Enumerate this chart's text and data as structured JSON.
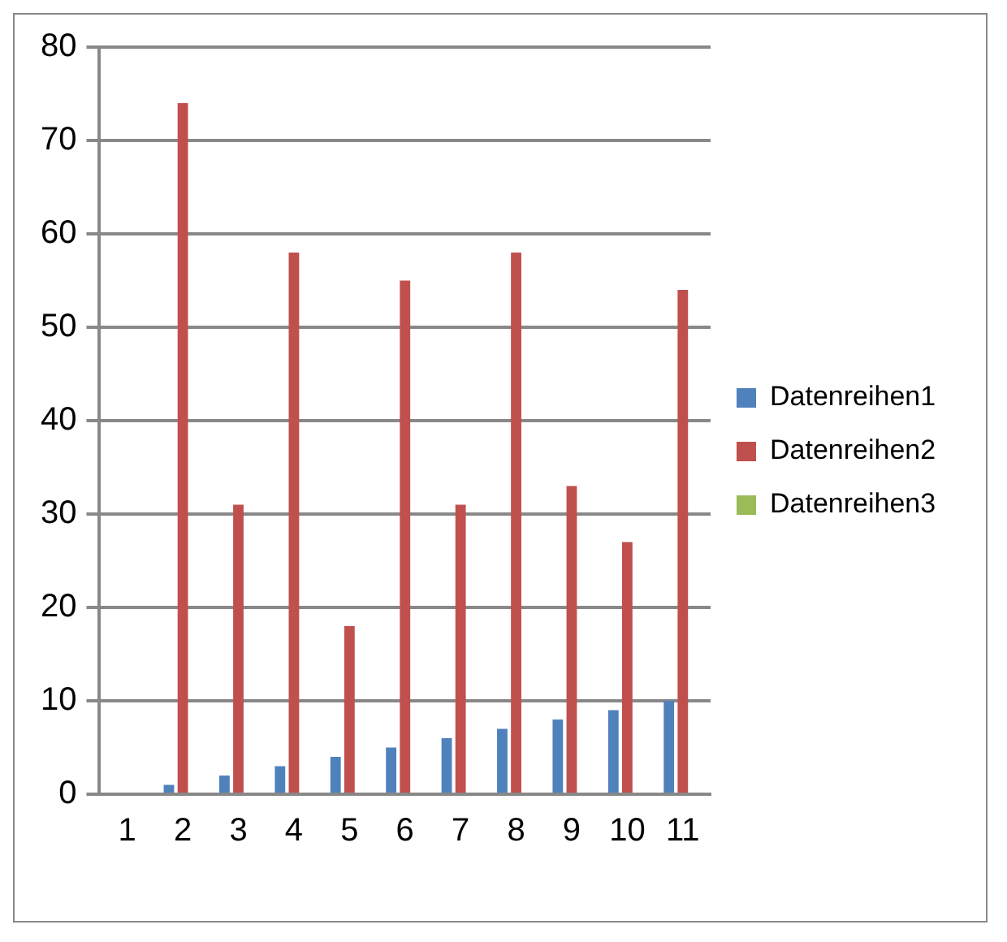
{
  "chart_data": {
    "type": "bar",
    "categories": [
      "1",
      "2",
      "3",
      "4",
      "5",
      "6",
      "7",
      "8",
      "9",
      "10",
      "11"
    ],
    "series": [
      {
        "name": "Datenreihen1",
        "color": "#4f81bd",
        "values": [
          0,
          1,
          2,
          3,
          4,
          5,
          6,
          7,
          8,
          9,
          10
        ]
      },
      {
        "name": "Datenreihen2",
        "color": "#c0504d",
        "values": [
          0,
          74,
          31,
          58,
          18,
          55,
          31,
          58,
          33,
          27,
          54
        ]
      },
      {
        "name": "Datenreihen3",
        "color": "#9bbb59",
        "values": [
          0,
          0,
          0,
          0,
          0,
          0,
          0,
          0,
          0,
          0,
          0
        ]
      }
    ],
    "ylim": [
      0,
      80
    ],
    "yticks": [
      0,
      10,
      20,
      30,
      40,
      50,
      60,
      70,
      80
    ],
    "grid": "y",
    "legend": "right"
  }
}
